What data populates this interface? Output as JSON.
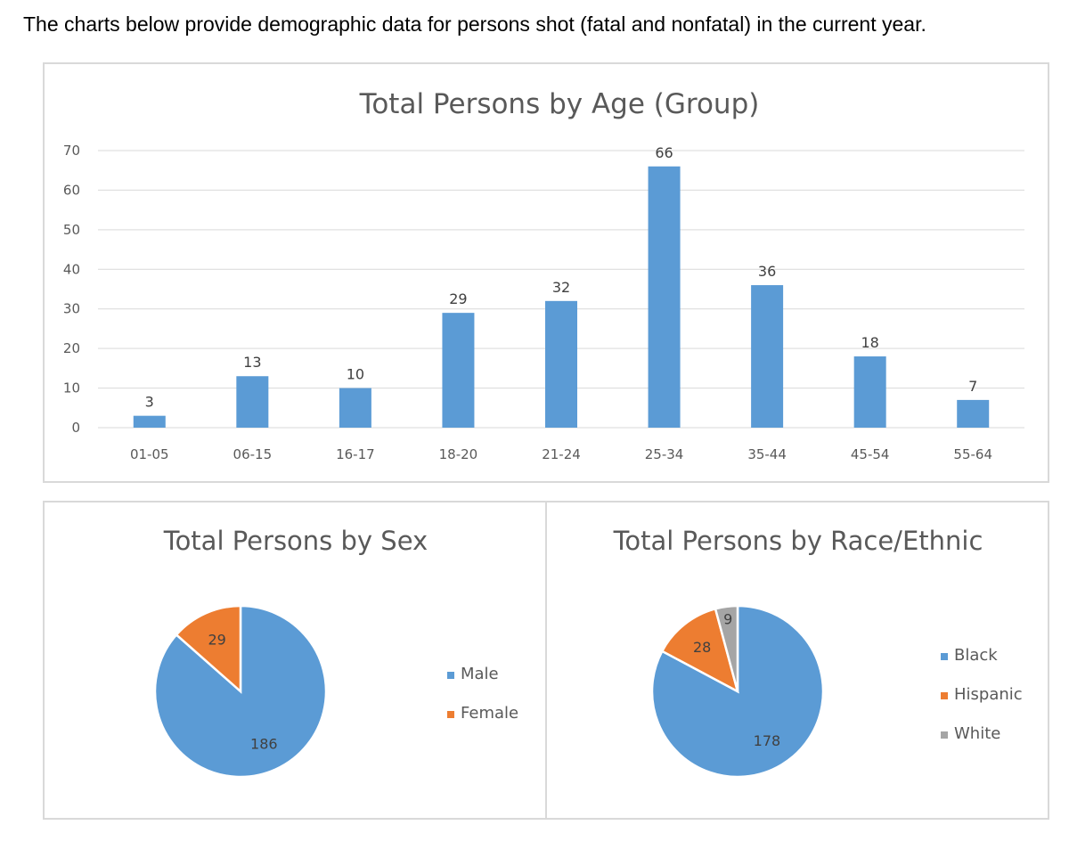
{
  "intro_text": "The charts below provide demographic data for persons shot (fatal and nonfatal) in the current year.",
  "colors": {
    "blue": "#5b9bd5",
    "orange": "#ed7d31",
    "gray": "#a5a5a5",
    "grid": "#d9d9d9",
    "text": "#595959"
  },
  "chart_data": [
    {
      "type": "bar",
      "title": "Total Persons by Age (Group)",
      "categories": [
        "01-05",
        "06-15",
        "16-17",
        "18-20",
        "21-24",
        "25-34",
        "35-44",
        "45-54",
        "55-64"
      ],
      "values": [
        3,
        13,
        10,
        29,
        32,
        66,
        36,
        18,
        7
      ],
      "yticks": [
        0,
        10,
        20,
        30,
        40,
        50,
        60,
        70
      ],
      "ylim": [
        0,
        70
      ],
      "xlabel": "",
      "ylabel": "",
      "grid": true,
      "data_labels": true,
      "legend": "none"
    },
    {
      "type": "pie",
      "title": "Total Persons by Sex",
      "labels": [
        "Male",
        "Female"
      ],
      "values": [
        186,
        29
      ],
      "colors": [
        "#5b9bd5",
        "#ed7d31"
      ],
      "legend": "right"
    },
    {
      "type": "pie",
      "title": "Total Persons by Race/Ethnic",
      "labels": [
        "Black",
        "Hispanic",
        "White"
      ],
      "values": [
        178,
        28,
        9
      ],
      "colors": [
        "#5b9bd5",
        "#ed7d31",
        "#a5a5a5"
      ],
      "legend": "right"
    }
  ]
}
